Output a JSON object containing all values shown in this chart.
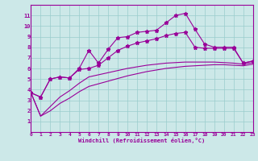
{
  "bg_color": "#cce8e8",
  "line_color": "#990099",
  "grid_color": "#99cccc",
  "xlabel": "Windchill (Refroidissement éolien,°C)",
  "xlim": [
    0,
    23
  ],
  "ylim": [
    0,
    12
  ],
  "yticks": [
    1,
    2,
    3,
    4,
    5,
    6,
    7,
    8,
    9,
    10,
    11
  ],
  "xticks": [
    0,
    1,
    2,
    3,
    4,
    5,
    6,
    7,
    8,
    9,
    10,
    11,
    12,
    13,
    14,
    15,
    16,
    17,
    18,
    19,
    20,
    21,
    22,
    23
  ],
  "line1_x": [
    0,
    1,
    2,
    3,
    4,
    5,
    6,
    7,
    8,
    9,
    10,
    11,
    12,
    13,
    14,
    15,
    16,
    17,
    18,
    19,
    20,
    21,
    22,
    23
  ],
  "line1_y": [
    3.7,
    3.3,
    5.0,
    5.2,
    5.1,
    6.0,
    7.7,
    6.5,
    7.8,
    8.9,
    9.0,
    9.4,
    9.5,
    9.6,
    10.3,
    11.0,
    11.2,
    9.7,
    8.3,
    8.0,
    8.0,
    8.0,
    6.5,
    6.7
  ],
  "line2_x": [
    0,
    1,
    2,
    3,
    4,
    5,
    6,
    7,
    8,
    9,
    10,
    11,
    12,
    13,
    14,
    15,
    16,
    17,
    18,
    19,
    20,
    21,
    22,
    23
  ],
  "line2_y": [
    3.7,
    3.3,
    5.0,
    5.2,
    5.1,
    5.9,
    6.0,
    6.3,
    7.0,
    7.7,
    8.1,
    8.4,
    8.6,
    8.8,
    9.1,
    9.3,
    9.4,
    8.0,
    7.9,
    7.9,
    7.9,
    7.9,
    6.5,
    6.7
  ],
  "line3_x": [
    0,
    1,
    2,
    3,
    4,
    5,
    6,
    7,
    8,
    9,
    10,
    11,
    12,
    13,
    14,
    15,
    16,
    17,
    18,
    19,
    20,
    21,
    22,
    23
  ],
  "line3_y": [
    3.7,
    1.5,
    2.4,
    3.3,
    3.9,
    4.6,
    5.2,
    5.4,
    5.6,
    5.8,
    6.0,
    6.15,
    6.3,
    6.4,
    6.5,
    6.55,
    6.6,
    6.6,
    6.6,
    6.6,
    6.55,
    6.5,
    6.4,
    6.55
  ],
  "line4_x": [
    0,
    1,
    2,
    3,
    4,
    5,
    6,
    7,
    8,
    9,
    10,
    11,
    12,
    13,
    14,
    15,
    16,
    17,
    18,
    19,
    20,
    21,
    22,
    23
  ],
  "line4_y": [
    3.7,
    1.5,
    2.0,
    2.7,
    3.2,
    3.8,
    4.3,
    4.55,
    4.8,
    5.05,
    5.3,
    5.5,
    5.7,
    5.85,
    6.0,
    6.1,
    6.2,
    6.25,
    6.3,
    6.35,
    6.35,
    6.3,
    6.25,
    6.4
  ]
}
